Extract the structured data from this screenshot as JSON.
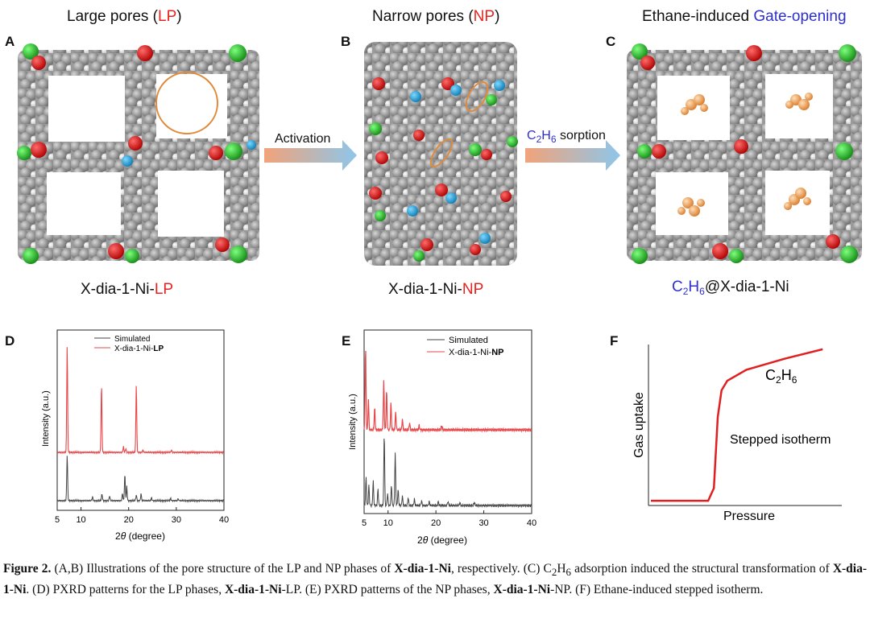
{
  "panels": {
    "A": {
      "letter": "A",
      "title": "Large pores (",
      "title_hl": "LP",
      "title_end": ")",
      "label": "X-dia-1-Ni-",
      "label_hl": "LP"
    },
    "B": {
      "letter": "B",
      "title": "Narrow pores (",
      "title_hl": "NP",
      "title_end": ")",
      "label": "X-dia-1-Ni-",
      "label_hl": "NP"
    },
    "C": {
      "letter": "C",
      "title": "Ethane-induced ",
      "title_hl": "Gate-opening",
      "label_pre": "C",
      "label_sub1": "2",
      "label_mid": "H",
      "label_sub2": "6",
      "label_rest": "@X-dia-1-Ni"
    },
    "D": {
      "letter": "D"
    },
    "E": {
      "letter": "E"
    },
    "F": {
      "letter": "F"
    }
  },
  "arrows": {
    "activation": "Activation",
    "sorption_pre": "C",
    "sorption_sub1": "2",
    "sorption_mid": "H",
    "sorption_sub2": "6",
    "sorption_rest": " sorption"
  },
  "chart_data": [
    {
      "type": "line",
      "panel": "D",
      "xlabel": "2θ (degree)",
      "ylabel": "Intensity (a.u.)",
      "xlim": [
        5,
        40
      ],
      "xticks": [
        "5",
        "10",
        "20",
        "30",
        "40"
      ],
      "series": [
        {
          "name": "Simulated",
          "color": "#444444",
          "peaks": [
            [
              7.1,
              0.95
            ],
            [
              12.4,
              0.08
            ],
            [
              14.4,
              0.14
            ],
            [
              16.0,
              0.1
            ],
            [
              18.7,
              0.15
            ],
            [
              19.2,
              0.55
            ],
            [
              19.6,
              0.3
            ],
            [
              21.6,
              0.12
            ],
            [
              22.6,
              0.14
            ],
            [
              24.8,
              0.06
            ],
            [
              28.8,
              0.05
            ],
            [
              30.4,
              0.04
            ]
          ]
        },
        {
          "name": "X-dia-1-Ni-LP",
          "color": "#e8474a",
          "peaks": [
            [
              7.1,
              2.3
            ],
            [
              14.3,
              1.45
            ],
            [
              18.9,
              0.12
            ],
            [
              19.4,
              0.08
            ],
            [
              21.6,
              1.45
            ],
            [
              23.0,
              0.05
            ],
            [
              29.0,
              0.05
            ]
          ]
        }
      ]
    },
    {
      "type": "line",
      "panel": "E",
      "xlabel": "2θ (degree)",
      "ylabel": "Intensity (a.u.)",
      "xlim": [
        5,
        40
      ],
      "xticks": [
        "5",
        "10",
        "20",
        "30",
        "40"
      ],
      "series": [
        {
          "name": "Simulated",
          "color": "#444444",
          "peaks": [
            [
              5.4,
              0.35
            ],
            [
              6.0,
              0.25
            ],
            [
              6.9,
              0.3
            ],
            [
              7.9,
              0.2
            ],
            [
              9.2,
              0.9
            ],
            [
              9.9,
              0.15
            ],
            [
              10.7,
              0.25
            ],
            [
              11.5,
              0.65
            ],
            [
              12.1,
              0.2
            ],
            [
              13.0,
              0.12
            ],
            [
              14.2,
              0.1
            ],
            [
              15.5,
              0.08
            ],
            [
              17.0,
              0.06
            ],
            [
              18.6,
              0.05
            ],
            [
              20.5,
              0.05
            ],
            [
              22.5,
              0.05
            ],
            [
              25.0,
              0.04
            ],
            [
              28.0,
              0.04
            ]
          ]
        },
        {
          "name": "X-dia-1-Ni-NP",
          "color": "#e8474a",
          "peaks": [
            [
              5.3,
              0.95
            ],
            [
              5.9,
              0.35
            ],
            [
              7.2,
              0.25
            ],
            [
              9.1,
              0.55
            ],
            [
              9.7,
              0.45
            ],
            [
              10.6,
              0.3
            ],
            [
              11.6,
              0.2
            ],
            [
              13.0,
              0.12
            ],
            [
              14.5,
              0.08
            ],
            [
              16.5,
              0.05
            ],
            [
              21.2,
              0.05
            ]
          ]
        }
      ]
    },
    {
      "type": "line",
      "panel": "F",
      "xlabel": "Pressure",
      "ylabel": "Gas uptake",
      "annotation_series": "C2H6",
      "annotation_series_pre": "C",
      "annotation_series_sub1": "2",
      "annotation_series_mid": "H",
      "annotation_series_sub2": "6",
      "annotation_text": "Stepped isotherm",
      "series": [
        {
          "name": "C2H6",
          "color": "#e02020",
          "x": [
            0,
            0.3,
            0.33,
            0.35,
            0.37,
            0.4,
            0.5,
            0.7,
            0.9
          ],
          "y": [
            0.02,
            0.02,
            0.1,
            0.55,
            0.72,
            0.78,
            0.85,
            0.92,
            0.98
          ]
        }
      ]
    }
  ],
  "caption": {
    "fig": "Figure 2.",
    "t1": " (A,B) Illustrations of the pore structure of the LP and NP phases of ",
    "b1": "X-dia-1-Ni",
    "t2": ", respectively. (C) C",
    "s1": "2",
    "t2b": "H",
    "s2": "6",
    "t3": " adsorption induced the structural transformation of ",
    "b2": "X-dia-1-Ni",
    "t4": ". (D) PXRD patterns for the LP phases, ",
    "b3": "X-dia-1-Ni",
    "t5": "-LP. (E) PXRD patterns of the NP phases, ",
    "b4": "X-dia-1-Ni",
    "t6": "-NP. (F) Ethane-induced stepped isotherm."
  },
  "colors": {
    "red": "#e8231f",
    "blue": "#2f2fd0",
    "arrow_start": "#f1a37a",
    "arrow_end": "#8ec6ea"
  }
}
